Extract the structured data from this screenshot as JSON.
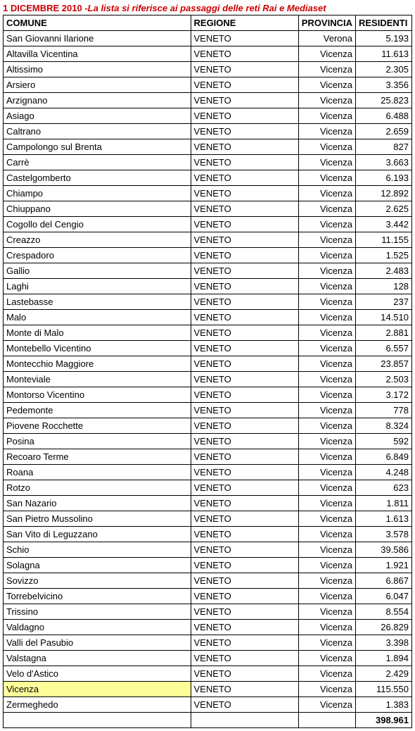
{
  "title_date": "1 DICEMBRE 2010",
  "title_rest": " -La lista si riferisce ai passaggi delle reti Rai e Mediaset",
  "columns": [
    "COMUNE",
    "REGIONE",
    "PROVINCIA",
    "RESIDENTI"
  ],
  "highlight_color": "#ffff99",
  "title_color": "#cc0000",
  "rows": [
    {
      "comune": "San Giovanni Ilarione",
      "regione": "VENETO",
      "provincia": "Verona",
      "residenti": "5.193",
      "highlight": false
    },
    {
      "comune": "Altavilla Vicentina",
      "regione": "VENETO",
      "provincia": "Vicenza",
      "residenti": "11.613",
      "highlight": false
    },
    {
      "comune": "Altissimo",
      "regione": "VENETO",
      "provincia": "Vicenza",
      "residenti": "2.305",
      "highlight": false
    },
    {
      "comune": "Arsiero",
      "regione": "VENETO",
      "provincia": "Vicenza",
      "residenti": "3.356",
      "highlight": false
    },
    {
      "comune": "Arzignano",
      "regione": "VENETO",
      "provincia": "Vicenza",
      "residenti": "25.823",
      "highlight": false
    },
    {
      "comune": "Asiago",
      "regione": "VENETO",
      "provincia": "Vicenza",
      "residenti": "6.488",
      "highlight": false
    },
    {
      "comune": "Caltrano",
      "regione": "VENETO",
      "provincia": "Vicenza",
      "residenti": "2.659",
      "highlight": false
    },
    {
      "comune": "Campolongo sul Brenta",
      "regione": "VENETO",
      "provincia": "Vicenza",
      "residenti": "827",
      "highlight": false
    },
    {
      "comune": "Carrè",
      "regione": "VENETO",
      "provincia": "Vicenza",
      "residenti": "3.663",
      "highlight": false
    },
    {
      "comune": "Castelgomberto",
      "regione": "VENETO",
      "provincia": "Vicenza",
      "residenti": "6.193",
      "highlight": false
    },
    {
      "comune": "Chiampo",
      "regione": "VENETO",
      "provincia": "Vicenza",
      "residenti": "12.892",
      "highlight": false
    },
    {
      "comune": "Chiuppano",
      "regione": "VENETO",
      "provincia": "Vicenza",
      "residenti": "2.625",
      "highlight": false
    },
    {
      "comune": "Cogollo del Cengio",
      "regione": "VENETO",
      "provincia": "Vicenza",
      "residenti": "3.442",
      "highlight": false
    },
    {
      "comune": "Creazzo",
      "regione": "VENETO",
      "provincia": "Vicenza",
      "residenti": "11.155",
      "highlight": false
    },
    {
      "comune": "Crespadoro",
      "regione": "VENETO",
      "provincia": "Vicenza",
      "residenti": "1.525",
      "highlight": false
    },
    {
      "comune": "Gallio",
      "regione": "VENETO",
      "provincia": "Vicenza",
      "residenti": "2.483",
      "highlight": false
    },
    {
      "comune": "Laghi",
      "regione": "VENETO",
      "provincia": "Vicenza",
      "residenti": "128",
      "highlight": false
    },
    {
      "comune": "Lastebasse",
      "regione": "VENETO",
      "provincia": "Vicenza",
      "residenti": "237",
      "highlight": false
    },
    {
      "comune": "Malo",
      "regione": "VENETO",
      "provincia": "Vicenza",
      "residenti": "14.510",
      "highlight": false
    },
    {
      "comune": "Monte di Malo",
      "regione": "VENETO",
      "provincia": "Vicenza",
      "residenti": "2.881",
      "highlight": false
    },
    {
      "comune": "Montebello Vicentino",
      "regione": "VENETO",
      "provincia": "Vicenza",
      "residenti": "6.557",
      "highlight": false
    },
    {
      "comune": "Montecchio Maggiore",
      "regione": "VENETO",
      "provincia": "Vicenza",
      "residenti": "23.857",
      "highlight": false
    },
    {
      "comune": "Monteviale",
      "regione": "VENETO",
      "provincia": "Vicenza",
      "residenti": "2.503",
      "highlight": false
    },
    {
      "comune": "Montorso Vicentino",
      "regione": "VENETO",
      "provincia": "Vicenza",
      "residenti": "3.172",
      "highlight": false
    },
    {
      "comune": "Pedemonte",
      "regione": "VENETO",
      "provincia": "Vicenza",
      "residenti": "778",
      "highlight": false
    },
    {
      "comune": "Piovene Rocchette",
      "regione": "VENETO",
      "provincia": "Vicenza",
      "residenti": "8.324",
      "highlight": false
    },
    {
      "comune": "Posina",
      "regione": "VENETO",
      "provincia": "Vicenza",
      "residenti": "592",
      "highlight": false
    },
    {
      "comune": "Recoaro Terme",
      "regione": "VENETO",
      "provincia": "Vicenza",
      "residenti": "6.849",
      "highlight": false
    },
    {
      "comune": "Roana",
      "regione": "VENETO",
      "provincia": "Vicenza",
      "residenti": "4.248",
      "highlight": false
    },
    {
      "comune": "Rotzo",
      "regione": "VENETO",
      "provincia": "Vicenza",
      "residenti": "623",
      "highlight": false
    },
    {
      "comune": "San Nazario",
      "regione": "VENETO",
      "provincia": "Vicenza",
      "residenti": "1.811",
      "highlight": false
    },
    {
      "comune": "San Pietro Mussolino",
      "regione": "VENETO",
      "provincia": "Vicenza",
      "residenti": "1.613",
      "highlight": false
    },
    {
      "comune": "San Vito di Leguzzano",
      "regione": "VENETO",
      "provincia": "Vicenza",
      "residenti": "3.578",
      "highlight": false
    },
    {
      "comune": "Schio",
      "regione": "VENETO",
      "provincia": "Vicenza",
      "residenti": "39.586",
      "highlight": false
    },
    {
      "comune": "Solagna",
      "regione": "VENETO",
      "provincia": "Vicenza",
      "residenti": "1.921",
      "highlight": false
    },
    {
      "comune": "Sovizzo",
      "regione": "VENETO",
      "provincia": "Vicenza",
      "residenti": "6.867",
      "highlight": false
    },
    {
      "comune": "Torrebelvicino",
      "regione": "VENETO",
      "provincia": "Vicenza",
      "residenti": "6.047",
      "highlight": false
    },
    {
      "comune": "Trissino",
      "regione": "VENETO",
      "provincia": "Vicenza",
      "residenti": "8.554",
      "highlight": false
    },
    {
      "comune": "Valdagno",
      "regione": "VENETO",
      "provincia": "Vicenza",
      "residenti": "26.829",
      "highlight": false
    },
    {
      "comune": "Valli del Pasubio",
      "regione": "VENETO",
      "provincia": "Vicenza",
      "residenti": "3.398",
      "highlight": false
    },
    {
      "comune": "Valstagna",
      "regione": "VENETO",
      "provincia": "Vicenza",
      "residenti": "1.894",
      "highlight": false
    },
    {
      "comune": "Velo d'Astico",
      "regione": "VENETO",
      "provincia": "Vicenza",
      "residenti": "2.429",
      "highlight": false
    },
    {
      "comune": "Vicenza",
      "regione": "VENETO",
      "provincia": "Vicenza",
      "residenti": "115.550",
      "highlight": true
    },
    {
      "comune": "Zermeghedo",
      "regione": "VENETO",
      "provincia": "Vicenza",
      "residenti": "1.383",
      "highlight": false
    }
  ],
  "total": "398.961"
}
